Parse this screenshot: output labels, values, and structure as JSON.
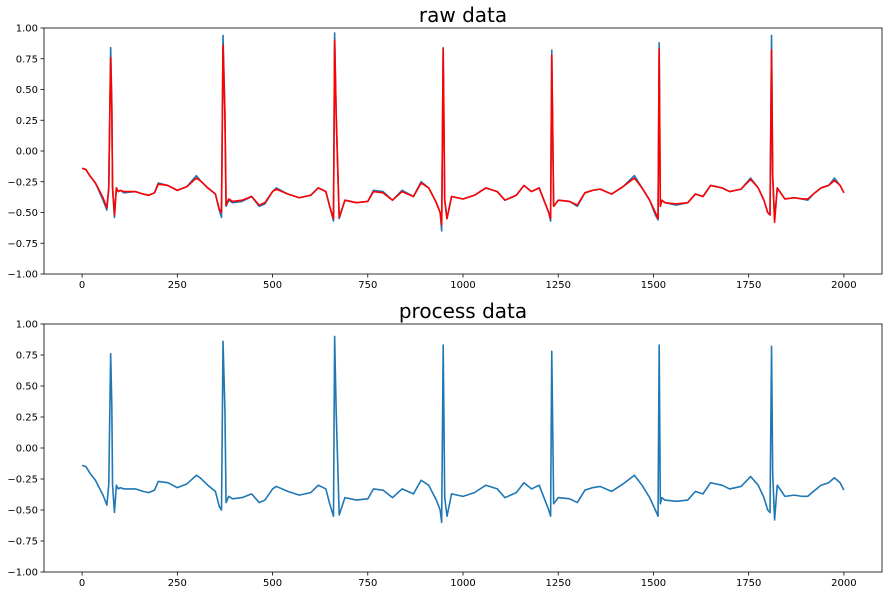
{
  "chart_data": [
    {
      "type": "line",
      "title": "raw data",
      "xlabel": "",
      "ylabel": "",
      "xlim": [
        -100,
        2100
      ],
      "ylim": [
        -1.0,
        1.0
      ],
      "x_ticks": [
        0,
        250,
        500,
        750,
        1000,
        1250,
        1500,
        1750,
        2000
      ],
      "x_tick_labels": [
        "0",
        "250",
        "500",
        "750",
        "1000",
        "1250",
        "1500",
        "1750",
        "2000"
      ],
      "y_ticks": [
        -1.0,
        -0.75,
        -0.5,
        -0.25,
        0.0,
        0.25,
        0.5,
        0.75,
        1.0
      ],
      "y_tick_labels": [
        "−1.00",
        "−0.75",
        "−0.50",
        "−0.25",
        "0.00",
        "0.25",
        "0.50",
        "0.75",
        "1.00"
      ],
      "grid": false,
      "series": [
        {
          "color": "#1f77b4",
          "x": [
            0,
            10,
            20,
            35,
            55,
            65,
            70,
            75,
            78,
            80,
            85,
            90,
            95,
            100,
            110,
            140,
            160,
            175,
            190,
            200,
            225,
            250,
            275,
            300,
            310,
            330,
            350,
            360,
            366,
            370,
            375,
            378,
            385,
            395,
            420,
            445,
            465,
            480,
            500,
            510,
            540,
            570,
            600,
            620,
            640,
            650,
            660,
            663,
            667,
            675,
            690,
            720,
            750,
            765,
            790,
            815,
            840,
            870,
            890,
            910,
            930,
            940,
            944,
            948,
            952,
            958,
            970,
            1000,
            1030,
            1060,
            1090,
            1110,
            1140,
            1160,
            1180,
            1200,
            1215,
            1225,
            1230,
            1233,
            1238,
            1250,
            1280,
            1300,
            1320,
            1340,
            1360,
            1390,
            1420,
            1450,
            1470,
            1490,
            1505,
            1512,
            1515,
            1518,
            1522,
            1530,
            1560,
            1590,
            1610,
            1630,
            1650,
            1680,
            1700,
            1730,
            1755,
            1775,
            1790,
            1800,
            1806,
            1810,
            1813,
            1818,
            1825,
            1845,
            1870,
            1890,
            1905,
            1920,
            1940,
            1960,
            1975,
            1990,
            2000
          ],
          "y": [
            -0.14,
            -0.15,
            -0.2,
            -0.26,
            -0.4,
            -0.48,
            -0.3,
            0.84,
            0.4,
            -0.3,
            -0.54,
            -0.3,
            -0.33,
            -0.32,
            -0.34,
            -0.33,
            -0.35,
            -0.36,
            -0.34,
            -0.26,
            -0.28,
            -0.32,
            -0.29,
            -0.2,
            -0.24,
            -0.3,
            -0.35,
            -0.48,
            -0.54,
            0.94,
            0.3,
            -0.45,
            -0.4,
            -0.42,
            -0.41,
            -0.37,
            -0.45,
            -0.43,
            -0.33,
            -0.3,
            -0.35,
            -0.38,
            -0.36,
            -0.3,
            -0.33,
            -0.45,
            -0.57,
            0.96,
            0.3,
            -0.55,
            -0.4,
            -0.42,
            -0.41,
            -0.32,
            -0.33,
            -0.4,
            -0.32,
            -0.37,
            -0.25,
            -0.3,
            -0.42,
            -0.5,
            -0.65,
            0.84,
            -0.4,
            -0.55,
            -0.37,
            -0.39,
            -0.36,
            -0.3,
            -0.33,
            -0.4,
            -0.36,
            -0.28,
            -0.33,
            -0.3,
            -0.42,
            -0.5,
            -0.57,
            0.82,
            -0.45,
            -0.4,
            -0.41,
            -0.45,
            -0.34,
            -0.32,
            -0.31,
            -0.35,
            -0.29,
            -0.2,
            -0.3,
            -0.4,
            -0.52,
            -0.56,
            0.88,
            -0.45,
            -0.4,
            -0.42,
            -0.44,
            -0.42,
            -0.35,
            -0.37,
            -0.28,
            -0.3,
            -0.33,
            -0.31,
            -0.22,
            -0.3,
            -0.4,
            -0.5,
            -0.52,
            0.94,
            -0.2,
            -0.55,
            -0.3,
            -0.39,
            -0.38,
            -0.39,
            -0.4,
            -0.35,
            -0.3,
            -0.28,
            -0.22,
            -0.28,
            -0.34
          ]
        },
        {
          "color": "#ff0000",
          "x": [
            0,
            10,
            20,
            35,
            55,
            65,
            70,
            75,
            78,
            80,
            85,
            90,
            95,
            100,
            110,
            140,
            160,
            175,
            190,
            200,
            225,
            250,
            275,
            300,
            310,
            330,
            350,
            360,
            366,
            370,
            375,
            378,
            385,
            395,
            420,
            445,
            465,
            480,
            500,
            510,
            540,
            570,
            600,
            620,
            640,
            650,
            660,
            663,
            667,
            675,
            690,
            720,
            750,
            765,
            790,
            815,
            840,
            870,
            890,
            910,
            930,
            940,
            944,
            948,
            952,
            958,
            970,
            1000,
            1030,
            1060,
            1090,
            1110,
            1140,
            1160,
            1180,
            1200,
            1215,
            1225,
            1230,
            1233,
            1238,
            1250,
            1280,
            1300,
            1320,
            1340,
            1360,
            1390,
            1420,
            1450,
            1470,
            1490,
            1505,
            1512,
            1515,
            1518,
            1522,
            1530,
            1560,
            1590,
            1610,
            1630,
            1650,
            1680,
            1700,
            1730,
            1755,
            1775,
            1790,
            1800,
            1806,
            1810,
            1813,
            1818,
            1825,
            1845,
            1870,
            1890,
            1905,
            1920,
            1940,
            1960,
            1975,
            1990,
            2000
          ],
          "y": [
            -0.14,
            -0.15,
            -0.2,
            -0.26,
            -0.38,
            -0.46,
            -0.3,
            0.76,
            0.35,
            -0.3,
            -0.52,
            -0.3,
            -0.33,
            -0.32,
            -0.33,
            -0.33,
            -0.35,
            -0.36,
            -0.34,
            -0.27,
            -0.28,
            -0.32,
            -0.29,
            -0.22,
            -0.24,
            -0.3,
            -0.35,
            -0.47,
            -0.5,
            0.86,
            0.3,
            -0.44,
            -0.39,
            -0.41,
            -0.4,
            -0.37,
            -0.44,
            -0.42,
            -0.33,
            -0.31,
            -0.35,
            -0.38,
            -0.36,
            -0.3,
            -0.33,
            -0.45,
            -0.55,
            0.9,
            0.3,
            -0.54,
            -0.4,
            -0.42,
            -0.41,
            -0.33,
            -0.34,
            -0.4,
            -0.33,
            -0.37,
            -0.26,
            -0.3,
            -0.42,
            -0.5,
            -0.6,
            0.83,
            -0.4,
            -0.55,
            -0.37,
            -0.39,
            -0.36,
            -0.3,
            -0.33,
            -0.4,
            -0.36,
            -0.28,
            -0.33,
            -0.3,
            -0.42,
            -0.5,
            -0.55,
            0.78,
            -0.45,
            -0.4,
            -0.41,
            -0.44,
            -0.34,
            -0.32,
            -0.31,
            -0.35,
            -0.29,
            -0.22,
            -0.3,
            -0.4,
            -0.5,
            -0.55,
            0.83,
            -0.45,
            -0.4,
            -0.42,
            -0.43,
            -0.42,
            -0.35,
            -0.37,
            -0.28,
            -0.3,
            -0.33,
            -0.31,
            -0.23,
            -0.3,
            -0.4,
            -0.5,
            -0.52,
            0.82,
            -0.2,
            -0.58,
            -0.3,
            -0.39,
            -0.38,
            -0.39,
            -0.39,
            -0.35,
            -0.3,
            -0.28,
            -0.24,
            -0.28,
            -0.34
          ]
        }
      ]
    },
    {
      "type": "line",
      "title": "process data",
      "xlabel": "",
      "ylabel": "",
      "xlim": [
        -100,
        2100
      ],
      "ylim": [
        -1.0,
        1.0
      ],
      "x_ticks": [
        0,
        250,
        500,
        750,
        1000,
        1250,
        1500,
        1750,
        2000
      ],
      "x_tick_labels": [
        "0",
        "250",
        "500",
        "750",
        "1000",
        "1250",
        "1500",
        "1750",
        "2000"
      ],
      "y_ticks": [
        -1.0,
        -0.75,
        -0.5,
        -0.25,
        0.0,
        0.25,
        0.5,
        0.75,
        1.0
      ],
      "y_tick_labels": [
        "−1.00",
        "−0.75",
        "−0.50",
        "−0.25",
        "0.00",
        "0.25",
        "0.50",
        "0.75",
        "1.00"
      ],
      "grid": false,
      "series": [
        {
          "color": "#1f77b4",
          "x": [
            0,
            10,
            20,
            35,
            55,
            65,
            70,
            75,
            78,
            80,
            85,
            90,
            95,
            100,
            110,
            140,
            160,
            175,
            190,
            200,
            225,
            250,
            275,
            300,
            310,
            330,
            350,
            360,
            366,
            370,
            375,
            378,
            385,
            395,
            420,
            445,
            465,
            480,
            500,
            510,
            540,
            570,
            600,
            620,
            640,
            650,
            660,
            663,
            667,
            675,
            690,
            720,
            750,
            765,
            790,
            815,
            840,
            870,
            890,
            910,
            930,
            940,
            944,
            948,
            952,
            958,
            970,
            1000,
            1030,
            1060,
            1090,
            1110,
            1140,
            1160,
            1180,
            1200,
            1215,
            1225,
            1230,
            1233,
            1238,
            1250,
            1280,
            1300,
            1320,
            1340,
            1360,
            1390,
            1420,
            1450,
            1470,
            1490,
            1505,
            1512,
            1515,
            1518,
            1522,
            1530,
            1560,
            1590,
            1610,
            1630,
            1650,
            1680,
            1700,
            1730,
            1755,
            1775,
            1790,
            1800,
            1806,
            1810,
            1813,
            1818,
            1825,
            1845,
            1870,
            1890,
            1905,
            1920,
            1940,
            1960,
            1975,
            1990,
            2000
          ],
          "y": [
            -0.14,
            -0.15,
            -0.2,
            -0.26,
            -0.38,
            -0.46,
            -0.3,
            0.76,
            0.35,
            -0.3,
            -0.52,
            -0.3,
            -0.33,
            -0.32,
            -0.33,
            -0.33,
            -0.35,
            -0.36,
            -0.34,
            -0.27,
            -0.28,
            -0.32,
            -0.29,
            -0.22,
            -0.24,
            -0.3,
            -0.35,
            -0.47,
            -0.5,
            0.86,
            0.3,
            -0.44,
            -0.39,
            -0.41,
            -0.4,
            -0.37,
            -0.44,
            -0.42,
            -0.33,
            -0.31,
            -0.35,
            -0.38,
            -0.36,
            -0.3,
            -0.33,
            -0.45,
            -0.55,
            0.9,
            0.3,
            -0.54,
            -0.4,
            -0.42,
            -0.41,
            -0.33,
            -0.34,
            -0.4,
            -0.33,
            -0.37,
            -0.26,
            -0.3,
            -0.42,
            -0.5,
            -0.6,
            0.83,
            -0.4,
            -0.55,
            -0.37,
            -0.39,
            -0.36,
            -0.3,
            -0.33,
            -0.4,
            -0.36,
            -0.28,
            -0.33,
            -0.3,
            -0.42,
            -0.5,
            -0.55,
            0.78,
            -0.45,
            -0.4,
            -0.41,
            -0.44,
            -0.34,
            -0.32,
            -0.31,
            -0.35,
            -0.29,
            -0.22,
            -0.3,
            -0.4,
            -0.5,
            -0.55,
            0.83,
            -0.45,
            -0.4,
            -0.42,
            -0.43,
            -0.42,
            -0.35,
            -0.37,
            -0.28,
            -0.3,
            -0.33,
            -0.31,
            -0.23,
            -0.3,
            -0.4,
            -0.5,
            -0.52,
            0.82,
            -0.2,
            -0.58,
            -0.3,
            -0.39,
            -0.38,
            -0.39,
            -0.39,
            -0.35,
            -0.3,
            -0.28,
            -0.24,
            -0.28,
            -0.34
          ]
        }
      ]
    }
  ]
}
